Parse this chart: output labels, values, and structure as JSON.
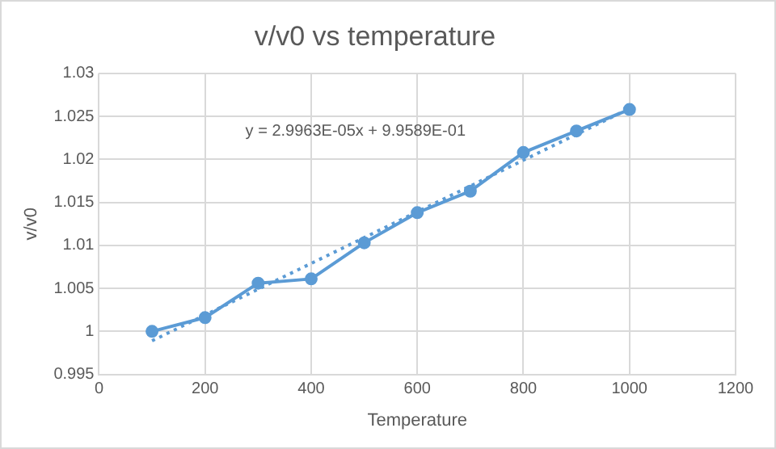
{
  "chart_data": {
    "type": "line",
    "title": "v/v0 vs temperature",
    "xlabel": "Temperature",
    "ylabel": "v/v0",
    "xlim": [
      0,
      1200
    ],
    "xticks": [
      0,
      200,
      400,
      600,
      800,
      1000,
      1200
    ],
    "ylim": [
      0.995,
      1.03
    ],
    "yticks": [
      0.995,
      1,
      1.005,
      1.01,
      1.015,
      1.02,
      1.025,
      1.03
    ],
    "grid": true,
    "legend": false,
    "marker": "circle",
    "line_style": "solid",
    "annotations": [
      "y = 2.9963E-05x + 9.9589E-01"
    ],
    "series": [
      {
        "color": "#5b9bd5",
        "x": [
          100,
          200,
          300,
          400,
          500,
          600,
          700,
          800,
          900,
          1000
        ],
        "values": [
          1.0,
          1.0016,
          1.0056,
          1.0061,
          1.0103,
          1.0138,
          1.0163,
          1.0208,
          1.0233,
          1.0258
        ]
      },
      {
        "color": "#5b9bd5",
        "marker": "none",
        "line_style": "dotted",
        "x": [
          100,
          1000
        ],
        "values": [
          0.9989,
          1.0259
        ]
      }
    ]
  }
}
